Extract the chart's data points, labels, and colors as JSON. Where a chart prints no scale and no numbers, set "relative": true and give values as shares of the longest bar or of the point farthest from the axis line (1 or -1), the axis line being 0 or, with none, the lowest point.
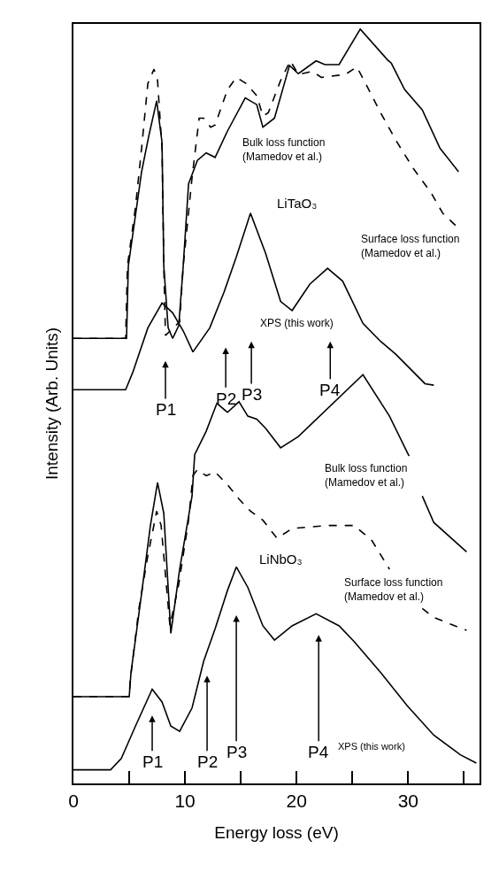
{
  "chart_data": {
    "type": "line",
    "relative": true,
    "xlabel": "Energy loss (eV)",
    "ylabel": "Intensity (Arb. Units)",
    "xlim": [
      0,
      36.4
    ],
    "xticks": [
      0,
      {
        "value": 5,
        "label": null
      },
      10,
      {
        "value": 15,
        "label": null
      },
      20,
      {
        "value": 25,
        "label": null
      },
      30,
      {
        "value": 35,
        "label": null
      }
    ],
    "tick_labels": "x",
    "marker": "none",
    "series": [
      {
        "color": "#000000",
        "line_style": "solid",
        "x": [
          0,
          4.76,
          4.92,
          6.11,
          6.75,
          7.46,
          7.94,
          8.1,
          8.49,
          8.89,
          9.44,
          9.84,
          10.32,
          11.11,
          11.9,
          12.7,
          13.81,
          15.4,
          16.43,
          16.98,
          18.02,
          19.37,
          20.16,
          21.75,
          22.54,
          23.81,
          25.71,
          28.17,
          28.49,
          29.68,
          31.27,
          32.86,
          34.52
        ],
        "values": [
          0.59,
          0.59,
          0.686,
          0.811,
          0.858,
          0.905,
          0.85,
          0.686,
          0.604,
          0.59,
          0.607,
          0.686,
          0.795,
          0.826,
          0.836,
          0.83,
          0.865,
          0.909,
          0.9,
          0.87,
          0.882,
          0.952,
          0.941,
          0.958,
          0.953,
          0.953,
          1.0,
          0.959,
          0.955,
          0.92,
          0.893,
          0.842,
          0.811
        ]
      },
      {
        "color": "#000000",
        "line_style": "dashed",
        "x": [
          0,
          4.68,
          4.84,
          5.56,
          6.11,
          6.67,
          7.22,
          7.54,
          7.94,
          8.1,
          8.25,
          9.52,
          9.84,
          10.63,
          11.27,
          11.67,
          12.3,
          12.7,
          13.81,
          14.6,
          15.48,
          16.43,
          16.98,
          17.46,
          18.57,
          19.44,
          20.16,
          21.43,
          22.22,
          24.37,
          25.4,
          26.19,
          27.54,
          28.89,
          30.48,
          32.06,
          33.1,
          34.52
        ],
        "values": [
          0.59,
          0.59,
          0.686,
          0.764,
          0.842,
          0.928,
          0.947,
          0.932,
          0.842,
          0.686,
          0.594,
          0.612,
          0.686,
          0.803,
          0.882,
          0.882,
          0.87,
          0.873,
          0.92,
          0.936,
          0.928,
          0.912,
          0.885,
          0.889,
          0.932,
          0.958,
          0.94,
          0.944,
          0.936,
          0.94,
          0.95,
          0.928,
          0.889,
          0.853,
          0.815,
          0.783,
          0.756,
          0.736
        ]
      },
      {
        "color": "#000000",
        "line_style": "solid",
        "x": [
          0,
          4.68,
          5.32,
          6.67,
          7.94,
          8.89,
          9.84,
          10.71,
          12.22,
          13.49,
          14.6,
          15.87,
          17.22,
          18.57,
          19.6,
          21.19,
          22.78,
          24.13,
          25.95,
          27.54,
          28.89,
          31.51,
          32.3
        ],
        "values": [
          0.522,
          0.522,
          0.545,
          0.604,
          0.637,
          0.624,
          0.6,
          0.572,
          0.604,
          0.651,
          0.698,
          0.756,
          0.703,
          0.639,
          0.627,
          0.662,
          0.683,
          0.666,
          0.61,
          0.586,
          0.569,
          0.53,
          0.528
        ]
      },
      {
        "color": "#000000",
        "line_style": "solid",
        "x": [
          0,
          5.0,
          5.16,
          6.11,
          6.9,
          7.54,
          8.1,
          8.73,
          9.52,
          10.63,
          10.87,
          11.9,
          12.86,
          13.81,
          14.84,
          15.63,
          16.43,
          17.22,
          18.57,
          20.16,
          25.95,
          28.33,
          30.08,
          30.7,
          31.27,
          32.3,
          35.24
        ],
        "values": [
          0.115,
          0.115,
          0.147,
          0.252,
          0.342,
          0.399,
          0.358,
          0.199,
          0.284,
          0.381,
          0.436,
          0.467,
          0.504,
          0.492,
          0.506,
          0.487,
          0.483,
          0.471,
          0.445,
          0.46,
          0.542,
          0.487,
          0.434,
          null,
          0.381,
          0.346,
          0.307
        ]
      },
      {
        "color": "#000000",
        "line_style": "dashed",
        "x": [
          0,
          5.0,
          5.08,
          5.87,
          6.67,
          7.46,
          7.86,
          8.65,
          9.44,
          10.32,
          10.71,
          11.11,
          11.9,
          12.7,
          13.81,
          14.84,
          15.87,
          16.98,
          18.25,
          19.6,
          22.78,
          25.16,
          26.75,
          28.33,
          29.9,
          31.27,
          32.3,
          35.24
        ],
        "values": [
          0.115,
          0.115,
          0.135,
          0.232,
          0.302,
          0.361,
          0.342,
          0.209,
          0.264,
          0.349,
          0.408,
          0.416,
          0.408,
          0.413,
          0.396,
          0.377,
          0.361,
          0.349,
          0.325,
          0.338,
          0.342,
          0.342,
          0.322,
          0.284,
          null,
          0.232,
          0.22,
          0.203
        ]
      },
      {
        "color": "#000000",
        "line_style": "solid",
        "x": [
          0,
          3.33,
          4.29,
          5.56,
          7.06,
          7.94,
          8.73,
          9.52,
          10.63,
          11.67,
          12.7,
          13.81,
          14.6,
          15.63,
          16.98,
          18.02,
          19.6,
          21.75,
          23.81,
          25.16,
          27.54,
          29.92,
          32.3,
          34.68,
          36.11
        ],
        "values": [
          0.018,
          0.018,
          0.033,
          0.076,
          0.125,
          0.108,
          0.076,
          0.069,
          0.1,
          0.162,
          0.205,
          0.256,
          0.287,
          0.26,
          0.209,
          0.19,
          0.209,
          0.225,
          0.209,
          0.188,
          0.147,
          0.103,
          0.064,
          0.038,
          0.027
        ]
      }
    ],
    "annotations": [
      "Bulk loss function\n(Mamedov et al.)",
      "LiTaO₃",
      "Surface loss function\n(Mamedov et al.)",
      "XPS (this work)",
      "P1",
      "P2",
      "P3",
      "P4",
      "Bulk loss function\n(Mamedov et al.)",
      "LiNbO₃",
      "Surface loss function\n(Mamedov et al.)",
      "P1",
      "P2",
      "P3",
      "P4",
      "XPS (this work)"
    ]
  }
}
